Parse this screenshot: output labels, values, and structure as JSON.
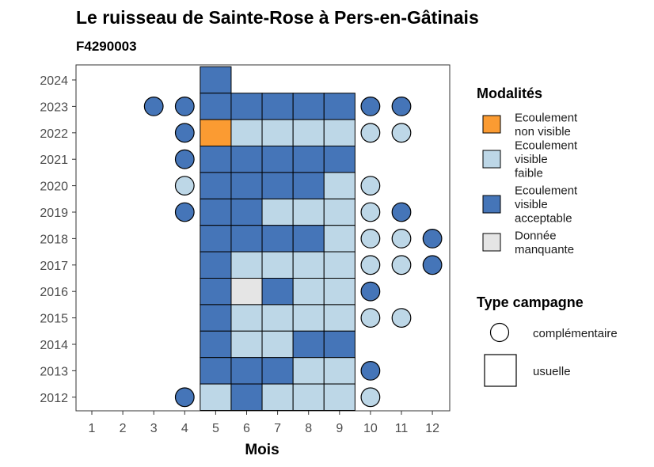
{
  "chart_data": {
    "type": "heatmap",
    "title": "Le ruisseau de Sainte-Rose à Pers-en-Gâtinais",
    "subtitle": "F4290003",
    "xlabel": "Mois",
    "ylabel": "",
    "x_ticks": [
      "1",
      "2",
      "3",
      "4",
      "5",
      "6",
      "7",
      "8",
      "9",
      "10",
      "11",
      "12"
    ],
    "y_ticks": [
      "2012",
      "2013",
      "2014",
      "2015",
      "2016",
      "2017",
      "2018",
      "2019",
      "2020",
      "2021",
      "2022",
      "2023",
      "2024"
    ],
    "xlim": [
      1,
      12
    ],
    "ylim": [
      2012,
      2024
    ],
    "grid": false,
    "legend_position": "right",
    "legend": {
      "modalites_title": "Modalités",
      "modalites": [
        {
          "key": "non_visible",
          "lines": [
            "Ecoulement",
            "non visible"
          ],
          "color": "#fb9b32"
        },
        {
          "key": "faible",
          "lines": [
            "Ecoulement",
            "visible",
            "faible"
          ],
          "color": "#bdd7e7"
        },
        {
          "key": "acceptable",
          "lines": [
            "Ecoulement",
            "visible",
            "acceptable"
          ],
          "color": "#4575b8"
        },
        {
          "key": "manquante",
          "lines": [
            "Donnée",
            "manquante"
          ],
          "color": "#e5e5e5"
        }
      ],
      "type_title": "Type campagne",
      "types": [
        {
          "key": "complementaire",
          "label": "complémentaire",
          "shape": "circle"
        },
        {
          "key": "usuelle",
          "label": "usuelle",
          "shape": "square"
        }
      ]
    },
    "observations": [
      {
        "year": 2024,
        "month": 5,
        "modalite": "acceptable",
        "type": "usuelle"
      },
      {
        "year": 2023,
        "month": 3,
        "modalite": "acceptable",
        "type": "complementaire"
      },
      {
        "year": 2023,
        "month": 4,
        "modalite": "acceptable",
        "type": "complementaire"
      },
      {
        "year": 2023,
        "month": 5,
        "modalite": "acceptable",
        "type": "usuelle"
      },
      {
        "year": 2023,
        "month": 6,
        "modalite": "acceptable",
        "type": "usuelle"
      },
      {
        "year": 2023,
        "month": 7,
        "modalite": "acceptable",
        "type": "usuelle"
      },
      {
        "year": 2023,
        "month": 8,
        "modalite": "acceptable",
        "type": "usuelle"
      },
      {
        "year": 2023,
        "month": 9,
        "modalite": "acceptable",
        "type": "usuelle"
      },
      {
        "year": 2023,
        "month": 10,
        "modalite": "acceptable",
        "type": "complementaire"
      },
      {
        "year": 2023,
        "month": 11,
        "modalite": "acceptable",
        "type": "complementaire"
      },
      {
        "year": 2022,
        "month": 4,
        "modalite": "acceptable",
        "type": "complementaire"
      },
      {
        "year": 2022,
        "month": 5,
        "modalite": "non_visible",
        "type": "usuelle"
      },
      {
        "year": 2022,
        "month": 6,
        "modalite": "faible",
        "type": "usuelle"
      },
      {
        "year": 2022,
        "month": 7,
        "modalite": "faible",
        "type": "usuelle"
      },
      {
        "year": 2022,
        "month": 8,
        "modalite": "faible",
        "type": "usuelle"
      },
      {
        "year": 2022,
        "month": 9,
        "modalite": "faible",
        "type": "usuelle"
      },
      {
        "year": 2022,
        "month": 10,
        "modalite": "faible",
        "type": "complementaire"
      },
      {
        "year": 2022,
        "month": 11,
        "modalite": "faible",
        "type": "complementaire"
      },
      {
        "year": 2021,
        "month": 4,
        "modalite": "acceptable",
        "type": "complementaire"
      },
      {
        "year": 2021,
        "month": 5,
        "modalite": "acceptable",
        "type": "usuelle"
      },
      {
        "year": 2021,
        "month": 6,
        "modalite": "acceptable",
        "type": "usuelle"
      },
      {
        "year": 2021,
        "month": 7,
        "modalite": "acceptable",
        "type": "usuelle"
      },
      {
        "year": 2021,
        "month": 8,
        "modalite": "acceptable",
        "type": "usuelle"
      },
      {
        "year": 2021,
        "month": 9,
        "modalite": "acceptable",
        "type": "usuelle"
      },
      {
        "year": 2020,
        "month": 4,
        "modalite": "faible",
        "type": "complementaire"
      },
      {
        "year": 2020,
        "month": 5,
        "modalite": "acceptable",
        "type": "usuelle"
      },
      {
        "year": 2020,
        "month": 6,
        "modalite": "acceptable",
        "type": "usuelle"
      },
      {
        "year": 2020,
        "month": 7,
        "modalite": "acceptable",
        "type": "usuelle"
      },
      {
        "year": 2020,
        "month": 8,
        "modalite": "acceptable",
        "type": "usuelle"
      },
      {
        "year": 2020,
        "month": 9,
        "modalite": "faible",
        "type": "usuelle"
      },
      {
        "year": 2020,
        "month": 10,
        "modalite": "faible",
        "type": "complementaire"
      },
      {
        "year": 2019,
        "month": 4,
        "modalite": "acceptable",
        "type": "complementaire"
      },
      {
        "year": 2019,
        "month": 5,
        "modalite": "acceptable",
        "type": "usuelle"
      },
      {
        "year": 2019,
        "month": 6,
        "modalite": "acceptable",
        "type": "usuelle"
      },
      {
        "year": 2019,
        "month": 7,
        "modalite": "faible",
        "type": "usuelle"
      },
      {
        "year": 2019,
        "month": 8,
        "modalite": "faible",
        "type": "usuelle"
      },
      {
        "year": 2019,
        "month": 9,
        "modalite": "faible",
        "type": "usuelle"
      },
      {
        "year": 2019,
        "month": 10,
        "modalite": "faible",
        "type": "complementaire"
      },
      {
        "year": 2019,
        "month": 11,
        "modalite": "acceptable",
        "type": "complementaire"
      },
      {
        "year": 2018,
        "month": 5,
        "modalite": "acceptable",
        "type": "usuelle"
      },
      {
        "year": 2018,
        "month": 6,
        "modalite": "acceptable",
        "type": "usuelle"
      },
      {
        "year": 2018,
        "month": 7,
        "modalite": "acceptable",
        "type": "usuelle"
      },
      {
        "year": 2018,
        "month": 8,
        "modalite": "acceptable",
        "type": "usuelle"
      },
      {
        "year": 2018,
        "month": 9,
        "modalite": "faible",
        "type": "usuelle"
      },
      {
        "year": 2018,
        "month": 10,
        "modalite": "faible",
        "type": "complementaire"
      },
      {
        "year": 2018,
        "month": 11,
        "modalite": "faible",
        "type": "complementaire"
      },
      {
        "year": 2018,
        "month": 12,
        "modalite": "acceptable",
        "type": "complementaire"
      },
      {
        "year": 2017,
        "month": 5,
        "modalite": "acceptable",
        "type": "usuelle"
      },
      {
        "year": 2017,
        "month": 6,
        "modalite": "faible",
        "type": "usuelle"
      },
      {
        "year": 2017,
        "month": 7,
        "modalite": "faible",
        "type": "usuelle"
      },
      {
        "year": 2017,
        "month": 8,
        "modalite": "faible",
        "type": "usuelle"
      },
      {
        "year": 2017,
        "month": 9,
        "modalite": "faible",
        "type": "usuelle"
      },
      {
        "year": 2017,
        "month": 10,
        "modalite": "faible",
        "type": "complementaire"
      },
      {
        "year": 2017,
        "month": 11,
        "modalite": "faible",
        "type": "complementaire"
      },
      {
        "year": 2017,
        "month": 12,
        "modalite": "acceptable",
        "type": "complementaire"
      },
      {
        "year": 2016,
        "month": 5,
        "modalite": "acceptable",
        "type": "usuelle"
      },
      {
        "year": 2016,
        "month": 6,
        "modalite": "manquante",
        "type": "usuelle"
      },
      {
        "year": 2016,
        "month": 7,
        "modalite": "acceptable",
        "type": "usuelle"
      },
      {
        "year": 2016,
        "month": 8,
        "modalite": "faible",
        "type": "usuelle"
      },
      {
        "year": 2016,
        "month": 9,
        "modalite": "faible",
        "type": "usuelle"
      },
      {
        "year": 2016,
        "month": 10,
        "modalite": "acceptable",
        "type": "complementaire"
      },
      {
        "year": 2015,
        "month": 5,
        "modalite": "acceptable",
        "type": "usuelle"
      },
      {
        "year": 2015,
        "month": 6,
        "modalite": "faible",
        "type": "usuelle"
      },
      {
        "year": 2015,
        "month": 7,
        "modalite": "faible",
        "type": "usuelle"
      },
      {
        "year": 2015,
        "month": 8,
        "modalite": "faible",
        "type": "usuelle"
      },
      {
        "year": 2015,
        "month": 9,
        "modalite": "faible",
        "type": "usuelle"
      },
      {
        "year": 2015,
        "month": 10,
        "modalite": "faible",
        "type": "complementaire"
      },
      {
        "year": 2015,
        "month": 11,
        "modalite": "faible",
        "type": "complementaire"
      },
      {
        "year": 2014,
        "month": 5,
        "modalite": "acceptable",
        "type": "usuelle"
      },
      {
        "year": 2014,
        "month": 6,
        "modalite": "faible",
        "type": "usuelle"
      },
      {
        "year": 2014,
        "month": 7,
        "modalite": "faible",
        "type": "usuelle"
      },
      {
        "year": 2014,
        "month": 8,
        "modalite": "acceptable",
        "type": "usuelle"
      },
      {
        "year": 2014,
        "month": 9,
        "modalite": "acceptable",
        "type": "usuelle"
      },
      {
        "year": 2013,
        "month": 5,
        "modalite": "acceptable",
        "type": "usuelle"
      },
      {
        "year": 2013,
        "month": 6,
        "modalite": "acceptable",
        "type": "usuelle"
      },
      {
        "year": 2013,
        "month": 7,
        "modalite": "acceptable",
        "type": "usuelle"
      },
      {
        "year": 2013,
        "month": 8,
        "modalite": "faible",
        "type": "usuelle"
      },
      {
        "year": 2013,
        "month": 9,
        "modalite": "faible",
        "type": "usuelle"
      },
      {
        "year": 2013,
        "month": 10,
        "modalite": "acceptable",
        "type": "complementaire"
      },
      {
        "year": 2012,
        "month": 4,
        "modalite": "acceptable",
        "type": "complementaire"
      },
      {
        "year": 2012,
        "month": 5,
        "modalite": "faible",
        "type": "usuelle"
      },
      {
        "year": 2012,
        "month": 6,
        "modalite": "acceptable",
        "type": "usuelle"
      },
      {
        "year": 2012,
        "month": 7,
        "modalite": "faible",
        "type": "usuelle"
      },
      {
        "year": 2012,
        "month": 8,
        "modalite": "faible",
        "type": "usuelle"
      },
      {
        "year": 2012,
        "month": 9,
        "modalite": "faible",
        "type": "usuelle"
      },
      {
        "year": 2012,
        "month": 10,
        "modalite": "faible",
        "type": "complementaire"
      }
    ]
  }
}
